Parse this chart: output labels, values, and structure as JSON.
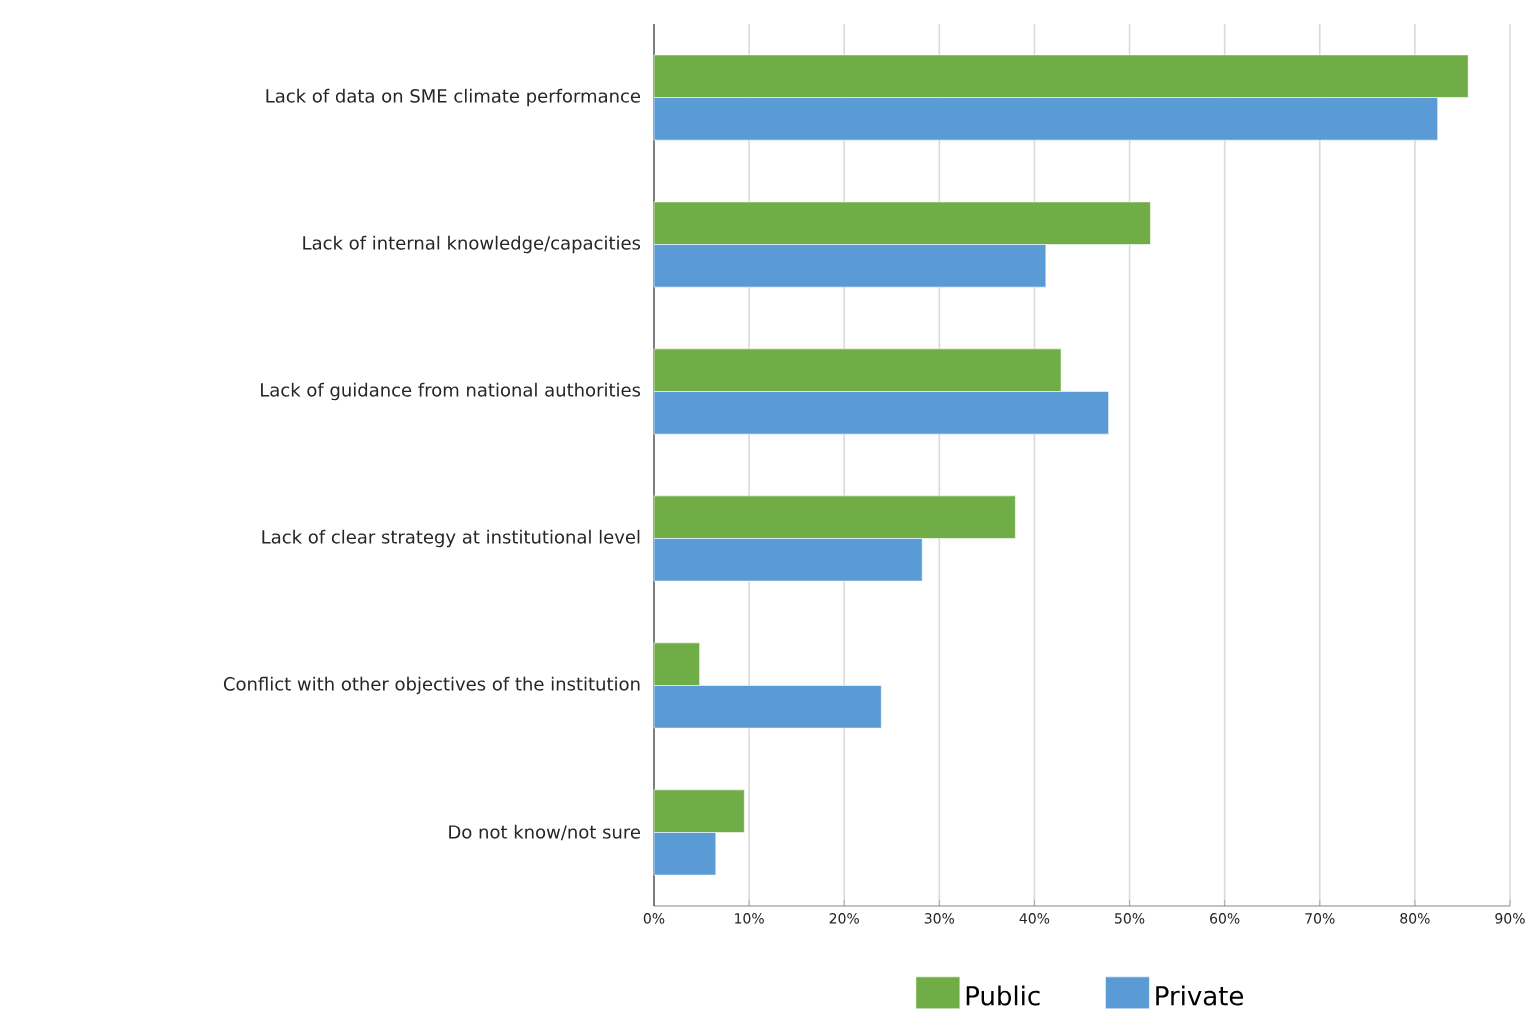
{
  "chart_data": {
    "type": "bar",
    "orientation": "horizontal",
    "categories": [
      "Lack of data on SME climate performance",
      "Lack of internal knowledge/capacities",
      "Lack of guidance from national authorities",
      "Lack of clear strategy at institutional level",
      "Conflict with other objectives of the institution",
      "Do not know/not sure"
    ],
    "series": [
      {
        "name": "Public",
        "color": "#70ad47",
        "values": [
          85.6,
          52.2,
          42.8,
          38.0,
          4.8,
          9.5
        ]
      },
      {
        "name": "Private",
        "color": "#5b9bd5",
        "values": [
          82.4,
          41.2,
          47.8,
          28.2,
          23.9,
          6.5
        ]
      }
    ],
    "xlim": [
      0,
      90
    ],
    "xticks": [
      {
        "value": 0,
        "label": "0%"
      },
      {
        "value": 10,
        "label": "10%"
      },
      {
        "value": 20,
        "label": "20%"
      },
      {
        "value": 30,
        "label": "30%"
      },
      {
        "value": 40,
        "label": "40%"
      },
      {
        "value": 50,
        "label": "50%"
      },
      {
        "value": 60,
        "label": "60%"
      },
      {
        "value": 70,
        "label": "70%"
      },
      {
        "value": 80,
        "label": "80%"
      },
      {
        "value": 90,
        "label": "90%"
      }
    ],
    "grid": "x",
    "legend": "bottom"
  }
}
